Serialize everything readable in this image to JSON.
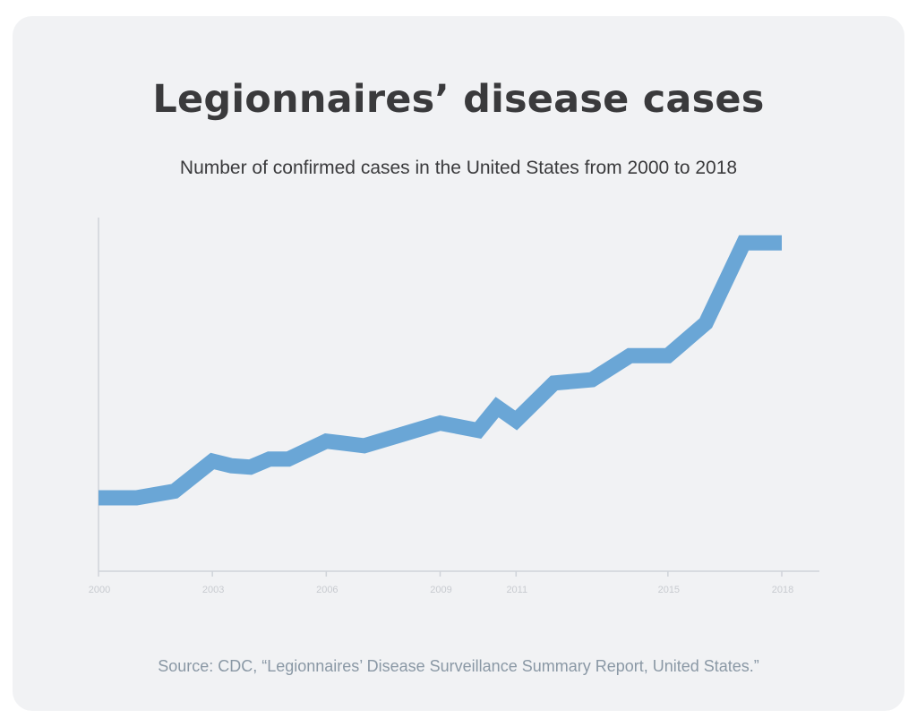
{
  "chart_data": {
    "type": "line",
    "title": "Legionnaires’ disease cases",
    "subtitle": "Number of confirmed cases in the United States from 2000 to 2018",
    "source": "Source: CDC, “Legionnaires’ Disease Surveillance Summary Report, United States.”",
    "x": [
      2000,
      2001,
      2002,
      2003,
      2003.5,
      2004,
      2004.5,
      2005,
      2006,
      2007,
      2008,
      2009,
      2010,
      2010.5,
      2011,
      2012,
      2013,
      2014,
      2015,
      2016,
      2017,
      2018
    ],
    "y": [
      1100,
      1100,
      1200,
      1650,
      1580,
      1560,
      1680,
      1680,
      1950,
      1880,
      2050,
      2220,
      2110,
      2460,
      2260,
      2820,
      2870,
      3230,
      3230,
      3720,
      4920,
      4920
    ],
    "xticks": [
      "2000",
      "2003",
      "2006",
      "2009",
      "2011",
      "2015",
      "2018"
    ],
    "xlim": [
      2000,
      2018
    ],
    "ylim": [
      0,
      5300
    ],
    "series_color": "#6aa6d6",
    "axis_color": "#cfd3d9",
    "grid": false
  }
}
